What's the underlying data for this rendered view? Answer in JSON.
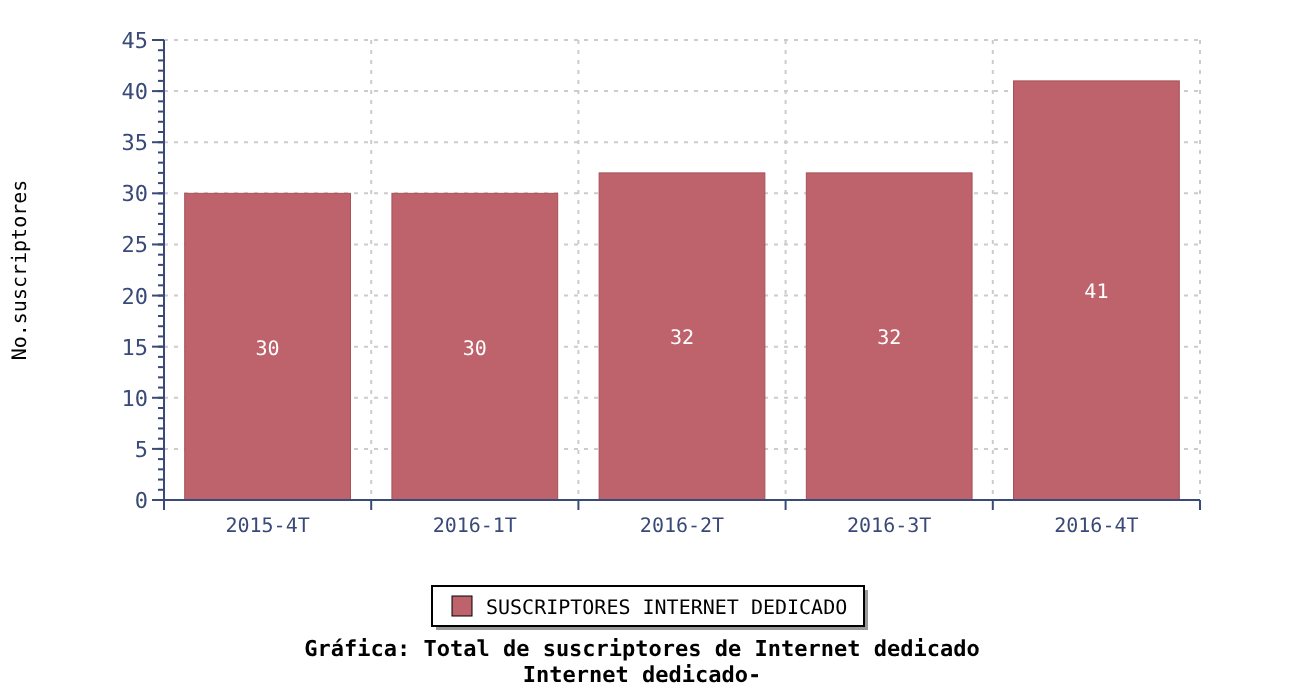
{
  "chart_data": {
    "type": "bar",
    "title": "Gráfica: Total de suscriptores de Internet dedicado",
    "subtitle": "Internet dedicado-",
    "ylabel": "No.suscriptores",
    "categories": [
      "2015-4T",
      "2016-1T",
      "2016-2T",
      "2016-3T",
      "2016-4T"
    ],
    "series": [
      {
        "name": "SUSCRIPTORES INTERNET DEDICADO",
        "color": "#be626b",
        "values": [
          30,
          30,
          32,
          32,
          41
        ]
      }
    ],
    "ylim": [
      0,
      45
    ],
    "yticks": [
      0,
      5,
      10,
      15,
      20,
      25,
      30,
      35,
      40,
      45
    ],
    "grid": true,
    "legend": "bottom",
    "data_labels": true
  }
}
